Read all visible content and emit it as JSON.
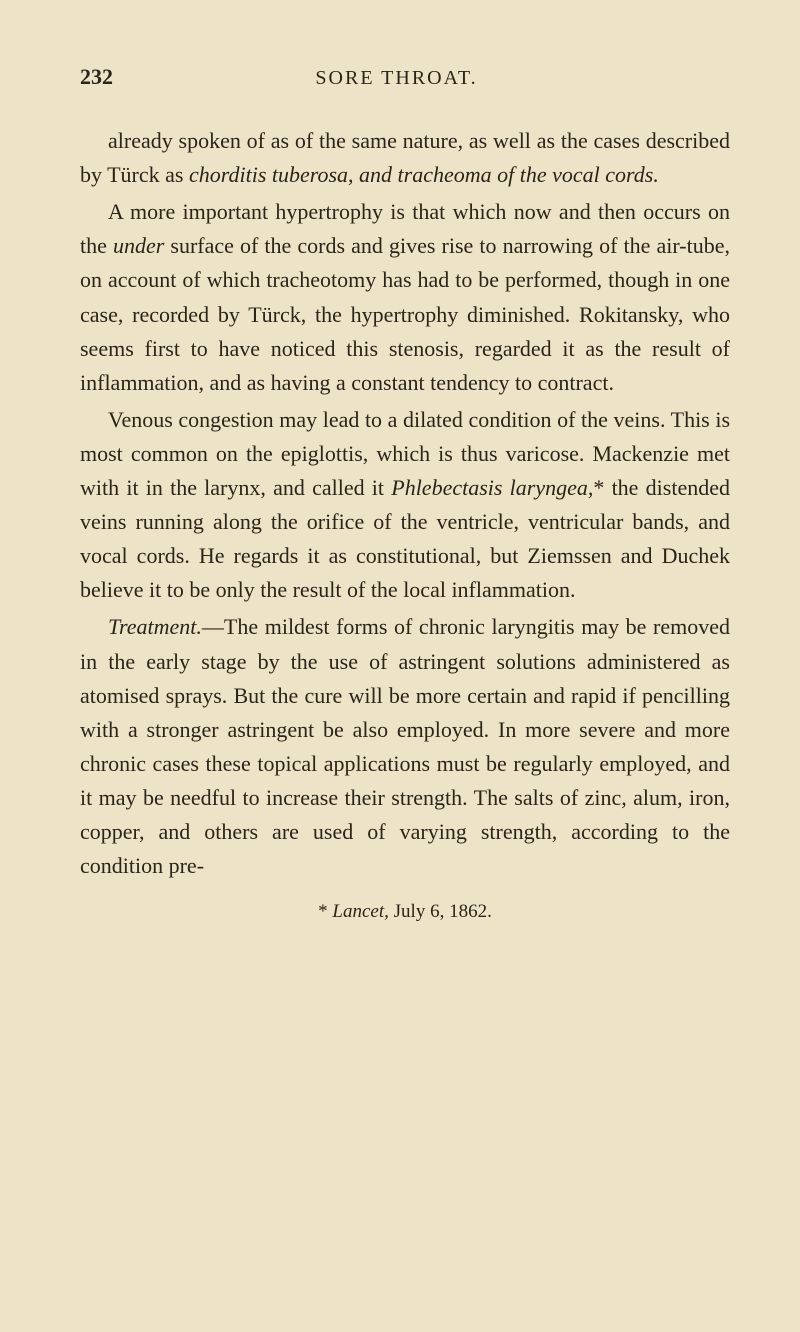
{
  "page": {
    "number": "232",
    "running_title": "SORE THROAT.",
    "paragraphs": {
      "p1_open": "already spoken of as of the same nature, as well as the cases described by Türck as ",
      "p1_italic1": "chorditis tuberosa, and tracheoma of the vocal cords.",
      "p2_open": "A more important hypertrophy is that which now and then occurs on the ",
      "p2_italic1": "under",
      "p2_after1": " surface of the cords and gives rise to narrowing of the air-tube, on account of which tracheotomy has had to be performed, though in one case, recorded by Türck, the hypertrophy diminished. Rokitansky, who seems first to have noticed this stenosis, regarded it as the result of inflammation, and as having a constant tendency to contract.",
      "p3_open": "Venous congestion may lead to a dilated condition of the veins. This is most common on the epiglottis, which is thus varicose. Mackenzie met with it in the larynx, and called it ",
      "p3_italic1": "Phlebectasis laryngea,",
      "p3_after1": "* the distended veins running along the orifice of the ventricle, ventricular bands, and vocal cords. He regards it as constitutional, but Ziemssen and Duchek believe it to be only the result of the local inflammation.",
      "p4_italic1": "Treatment.",
      "p4_after1": "—The mildest forms of chronic laryngitis may be removed in the early stage by the use of astringent solutions administered as atomised sprays. But the cure will be more certain and rapid if pencilling with a stronger astringent be also employed. In more severe and more chronic cases these topical applications must be regularly employed, and it may be needful to increase their strength. The salts of zinc, alum, iron, copper, and others are used of varying strength, according to the condition pre-"
    },
    "footnote": {
      "marker": "* ",
      "italic": "Lancet,",
      "rest": " July 6, 1862."
    }
  },
  "colors": {
    "background": "#ede4c8",
    "text": "#2a2419"
  },
  "typography": {
    "body_fontsize": 22,
    "header_fontsize": 20,
    "page_number_fontsize": 22,
    "footnote_fontsize": 19,
    "font_family": "Georgia, Times New Roman, serif",
    "line_height": 1.55
  }
}
